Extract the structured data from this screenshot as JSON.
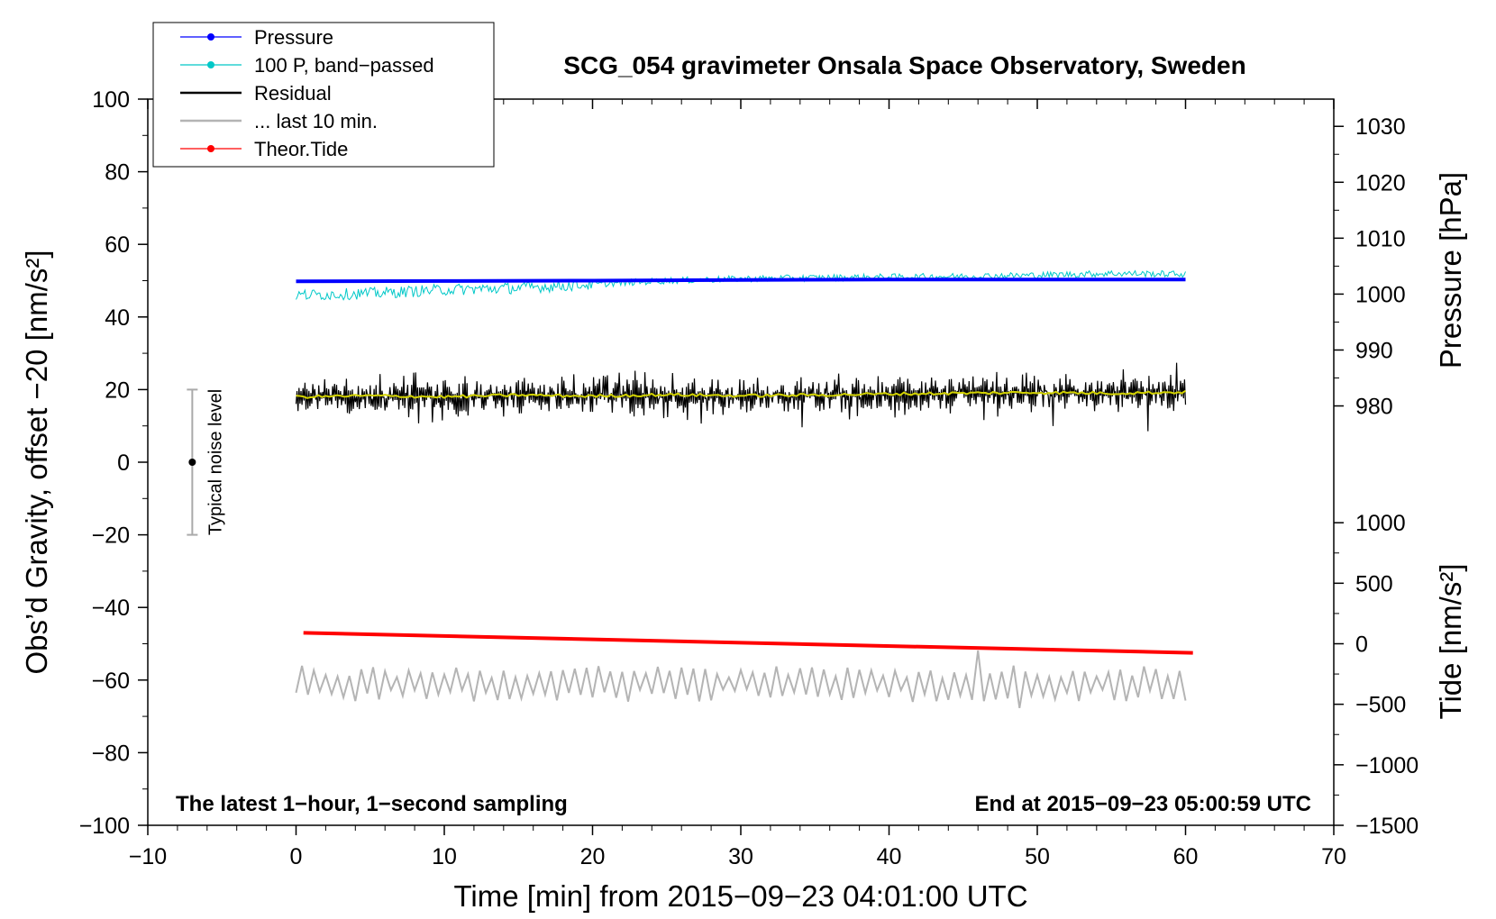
{
  "chart_data": {
    "type": "line",
    "title": "SCG_054 gravimeter Onsala Space Observatory, Sweden",
    "xlabel": "Time [min] from 2015−09−23 04:01:00 UTC",
    "ylabel_left": "Obs’d Gravity, offset −20 [nm/s²]",
    "ylabel_right_top": "Pressure [hPa]",
    "ylabel_right_bottom": "Tide [nm/s²]",
    "xlim": [
      -10,
      70
    ],
    "ylim_left": [
      -100,
      100
    ],
    "x_ticks": [
      -10,
      0,
      10,
      20,
      30,
      40,
      50,
      60,
      70
    ],
    "x_tick_labels": [
      "−10",
      "0",
      "10",
      "20",
      "30",
      "40",
      "50",
      "60",
      "70"
    ],
    "y_ticks_left": [
      100,
      80,
      60,
      40,
      20,
      0,
      -20,
      -40,
      -60,
      -80,
      -100
    ],
    "y_tick_labels_left": [
      "100",
      "80",
      "60",
      "40",
      "20",
      "0",
      "−20",
      "−40",
      "−60",
      "−80",
      "−100"
    ],
    "pressure_axis": {
      "ticks": [
        1030,
        1020,
        1010,
        1000,
        990,
        980
      ],
      "tick_labels": [
        "1030",
        "1020",
        "1010",
        "1000",
        "990",
        "980"
      ],
      "map": {
        "value_a": 980,
        "gravity_a": 15.5,
        "value_b": 1030,
        "gravity_b": 92.5
      }
    },
    "tide_axis": {
      "ticks": [
        1000,
        500,
        0,
        -500,
        -1000,
        -1500
      ],
      "tick_labels": [
        "1000",
        "500",
        "0",
        "−500",
        "−1000",
        "−1500"
      ],
      "map": {
        "value_a": 0,
        "gravity_a": -50,
        "value_b": -1500,
        "gravity_b": -100
      }
    },
    "legend": [
      {
        "label": "Pressure",
        "color": "#0000ff",
        "marker": "dot"
      },
      {
        "label": "100 P, band−passed",
        "color": "#00c8c8",
        "marker": "dot"
      },
      {
        "label": "Residual",
        "color": "#000000",
        "marker": "none"
      },
      {
        "label": "... last 10 min.",
        "color": "#b4b4b4",
        "marker": "none"
      },
      {
        "label": "Theor.Tide",
        "color": "#ff0000",
        "marker": "dot"
      }
    ],
    "series": [
      {
        "name": "Pressure",
        "color": "#0000ff",
        "axis": "left",
        "x": [
          0,
          10,
          20,
          30,
          40,
          50,
          60
        ],
        "y": [
          49.8,
          49.9,
          50.0,
          50.2,
          50.3,
          50.3,
          50.3
        ]
      },
      {
        "name": "100 P, band-passed",
        "color": "#00c8c8",
        "axis": "left",
        "x": [
          0,
          5,
          10,
          15,
          20,
          25,
          30,
          35,
          40,
          45,
          50,
          55,
          60
        ],
        "y": [
          46.0,
          46.5,
          47.5,
          48.0,
          49.0,
          50.0,
          50.5,
          50.8,
          51.0,
          51.2,
          51.5,
          52.0,
          51.8
        ]
      },
      {
        "name": "Residual",
        "color": "#000000",
        "axis": "left",
        "x": [
          0,
          10,
          20,
          30,
          40,
          50,
          60
        ],
        "y": [
          18.0,
          18.0,
          18.5,
          18.0,
          18.5,
          19.0,
          19.0
        ],
        "spread": 6
      },
      {
        "name": "Residual smoothed",
        "color": "#d2d200",
        "axis": "left",
        "x": [
          0,
          5,
          10,
          15,
          20,
          25,
          30,
          35,
          40,
          45,
          50,
          55,
          60
        ],
        "y": [
          18.0,
          18.3,
          18.0,
          18.5,
          18.2,
          18.6,
          18.3,
          18.5,
          18.8,
          19.0,
          19.2,
          19.0,
          19.3
        ]
      },
      {
        "name": "... last 10 min.",
        "color": "#b4b4b4",
        "axis": "left",
        "x": [
          0,
          60
        ],
        "y": [
          -61.0,
          -61.0
        ],
        "spread": 5
      },
      {
        "name": "Theor.Tide",
        "color": "#ff0000",
        "axis": "left",
        "x": [
          0.5,
          60.5
        ],
        "y": [
          -47.0,
          -52.5
        ]
      }
    ],
    "noise_bar": {
      "x": -7,
      "center": 0,
      "low": -20,
      "high": 20,
      "label": "Typical noise level"
    },
    "annotations": {
      "left": "The latest 1−hour, 1−second sampling",
      "right": "End at 2015−09−23 05:00:59 UTC"
    }
  },
  "colors": {
    "pressure": "#0000ff",
    "band_passed": "#00c8c8",
    "residual": "#000000",
    "smoothed": "#d2d200",
    "last10": "#b4b4b4",
    "tide": "#ff0000",
    "noise_bar": "#aaaaaa"
  }
}
